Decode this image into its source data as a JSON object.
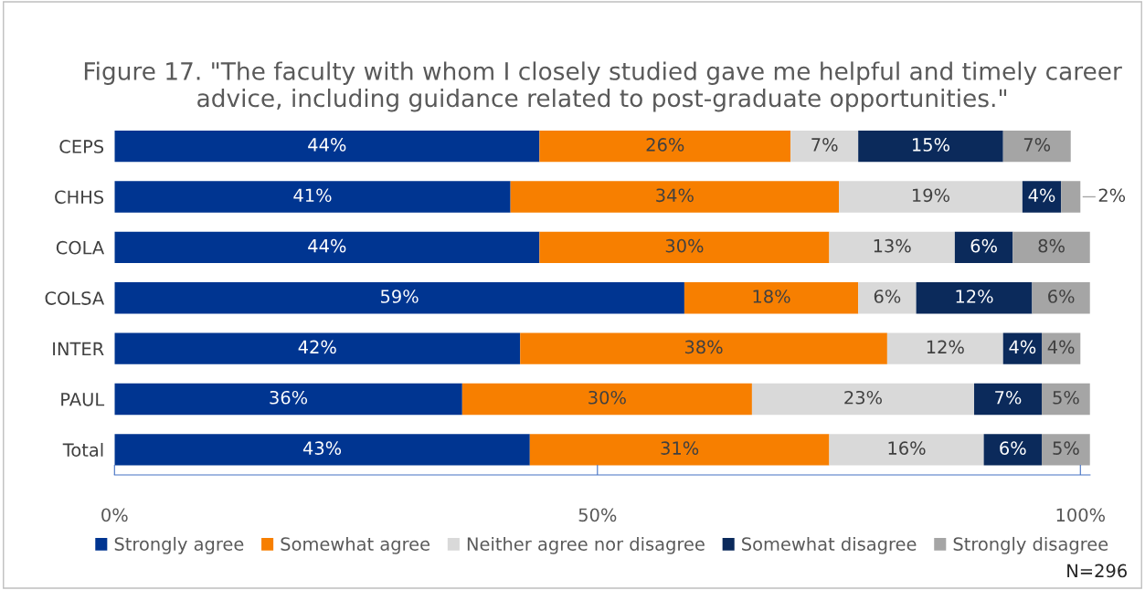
{
  "chart_data": {
    "type": "bar",
    "orientation": "horizontal",
    "stacked": true,
    "title": "Figure 17. \"The faculty with whom I closely studied gave me helpful and timely career advice, including guidance related to post-graduate opportunities.\"",
    "categories": [
      "CEPS",
      "CHHS",
      "COLA",
      "COLSA",
      "INTER",
      "PAUL",
      "Total"
    ],
    "series": [
      {
        "name": "Strongly agree",
        "color": "#003591",
        "values": [
          44,
          41,
          44,
          59,
          42,
          36,
          43
        ],
        "value_labels": [
          "44%",
          "41%",
          "44%",
          "59%",
          "42%",
          "36%",
          "43%"
        ]
      },
      {
        "name": "Somewhat agree",
        "color": "#f77f00",
        "values": [
          26,
          34,
          30,
          18,
          38,
          30,
          31
        ],
        "value_labels": [
          "26%",
          "34%",
          "30%",
          "18%",
          "38%",
          "30%",
          "31%"
        ]
      },
      {
        "name": "Neither agree nor disagree",
        "color": "#d9d9d9",
        "values": [
          7,
          19,
          13,
          6,
          12,
          23,
          16
        ],
        "value_labels": [
          "7%",
          "19%",
          "13%",
          "6%",
          "12%",
          "23%",
          "16%"
        ]
      },
      {
        "name": "Somewhat disagree",
        "color": "#0b2a5b",
        "values": [
          15,
          4,
          6,
          12,
          4,
          7,
          6
        ],
        "value_labels": [
          "15%",
          "4%",
          "6%",
          "12%",
          "4%",
          "7%",
          "6%"
        ]
      },
      {
        "name": "Strongly disagree",
        "color": "#a5a5a5",
        "values": [
          7,
          2,
          8,
          6,
          4,
          5,
          5
        ],
        "value_labels": [
          "7%",
          "2%",
          "8%",
          "6%",
          "4%",
          "5%",
          "5%"
        ]
      }
    ],
    "xlim": [
      0,
      101
    ],
    "xticks": [
      {
        "value": 0,
        "label": "0%"
      },
      {
        "value": 50,
        "label": "50%"
      },
      {
        "value": 100,
        "label": "100%"
      }
    ],
    "grid": false,
    "legend": "bottom",
    "annotations": [
      "N=296"
    ]
  }
}
